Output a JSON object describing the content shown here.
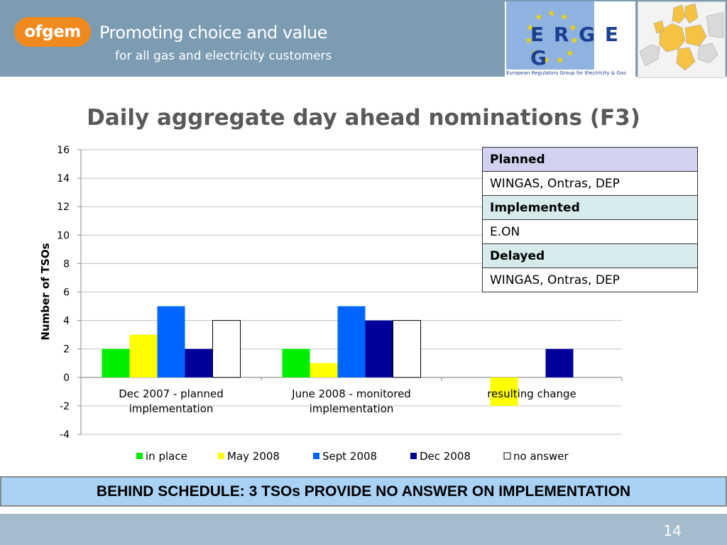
{
  "header": {
    "logo_text": "ofgem",
    "tagline_line1": "Promoting choice and value",
    "tagline_line2": "for all gas and electricity customers",
    "erge_logo_text": "E R G E G",
    "erge_caption": "European Regulators Group for Electricity & Gas",
    "colors": {
      "header_bg": "#7c9cb3",
      "ofgem_orange": "#f0891e"
    }
  },
  "title": "Daily aggregate day ahead nominations (F3)",
  "chart_data": {
    "type": "bar",
    "title": "",
    "xlabel": "",
    "ylabel": "Number  of  TSOs",
    "ylim": [
      -4,
      16
    ],
    "yticks": [
      -4,
      -2,
      0,
      2,
      4,
      6,
      8,
      10,
      12,
      14,
      16
    ],
    "grid": true,
    "legend_position": "bottom",
    "categories": [
      [
        "Dec 2007 - planned",
        "implementation"
      ],
      [
        "June 2008 - monitored",
        "implementation"
      ],
      [
        "resulting change"
      ]
    ],
    "series": [
      {
        "name": "in place",
        "color": "#00ee00",
        "values": [
          2,
          2,
          null
        ]
      },
      {
        "name": "May 2008",
        "color": "#ffff00",
        "values": [
          3,
          1,
          -2
        ]
      },
      {
        "name": "Sept 2008",
        "color": "#0066ff",
        "values": [
          5,
          5,
          null
        ]
      },
      {
        "name": "Dec 2008",
        "color": "#000099",
        "values": [
          2,
          4,
          2
        ]
      },
      {
        "name": "no answer",
        "color": "#ffffff",
        "values": [
          4,
          4,
          null
        ]
      }
    ]
  },
  "table": {
    "planned_header": "Planned",
    "planned_value": "WINGAS, Ontras, DEP",
    "implemented_header": "Implemented",
    "implemented_value": "E.ON",
    "delayed_header": "Delayed",
    "delayed_value": "WINGAS, Ontras, DEP"
  },
  "banner": "BEHIND SCHEDULE: 3 TSOs PROVIDE NO ANSWER ON IMPLEMENTATION",
  "footer": {
    "page_number": "14"
  }
}
